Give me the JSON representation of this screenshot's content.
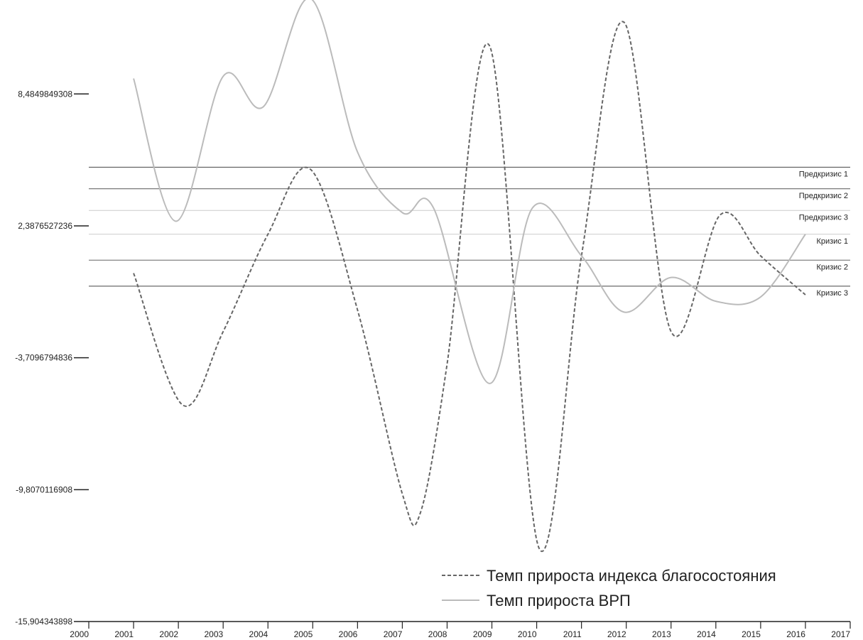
{
  "chart_data": {
    "type": "line",
    "title": "",
    "xlabel": "",
    "ylabel": "",
    "xlim": [
      2000,
      2017
    ],
    "ylim": [
      -15.904343898,
      12.5
    ],
    "x_ticks": [
      "2000",
      "2001",
      "2002",
      "2003",
      "2004",
      "2005",
      "2006",
      "2007",
      "2008",
      "2009",
      "2010",
      "2011",
      "2012",
      "2013",
      "2014",
      "2015",
      "2016",
      "2017"
    ],
    "y_ticks": [
      {
        "value": 8.4849849308,
        "label": "8,4849849308"
      },
      {
        "value": 2.3876527236,
        "label": "2,3876527236"
      },
      {
        "value": -3.7096794836,
        "label": "-3,7096794836"
      },
      {
        "value": -9.8070116908,
        "label": "-9,8070116908"
      },
      {
        "value": -15.904343898,
        "label": "-15,904343898"
      }
    ],
    "reference_lines": [
      {
        "label": "Предкризис 1",
        "value": 5.1,
        "color": "#444444"
      },
      {
        "label": "Предкризис 2",
        "value": 4.1,
        "color": "#555555"
      },
      {
        "label": "Предкризис 3",
        "value": 3.1,
        "color": "#cccccc"
      },
      {
        "label": "Кризис 1",
        "value": 2.0,
        "color": "#cccccc"
      },
      {
        "label": "Кризис 2",
        "value": 0.8,
        "color": "#666666"
      },
      {
        "label": "Кризис 3",
        "value": -0.4,
        "color": "#444444"
      }
    ],
    "series": [
      {
        "name": "Темп прироста индекса благосостояния",
        "style": "dashed",
        "color": "#666666",
        "x": [
          2001,
          2002.1,
          2003,
          2004,
          2004.95,
          2006,
          2007,
          2007.4,
          2008,
          2008.95,
          2010.05,
          2011,
          2011.95,
          2013,
          2014.1,
          2015,
          2016
        ],
        "y": [
          0.2,
          -5.9,
          -2.5,
          2.0,
          5.0,
          -1.5,
          -10.0,
          -10.9,
          -4.0,
          10.7,
          -12.5,
          1.0,
          11.8,
          -2.5,
          2.9,
          1.0,
          -0.8
        ]
      },
      {
        "name": "Темп прироста ВРП",
        "style": "solid",
        "color": "#bbbbbb",
        "x": [
          2001,
          2001.95,
          2003,
          2003.9,
          2004.95,
          2006,
          2007,
          2007.7,
          2008.95,
          2009.9,
          2011,
          2011.95,
          2013,
          2014,
          2015,
          2016
        ],
        "y": [
          9.2,
          2.6,
          9.3,
          7.9,
          12.9,
          5.8,
          3.0,
          3.2,
          -4.9,
          3.2,
          1.0,
          -1.6,
          0.0,
          -1.1,
          -0.9,
          2.0
        ]
      }
    ],
    "legend_position": "bottom-right"
  }
}
